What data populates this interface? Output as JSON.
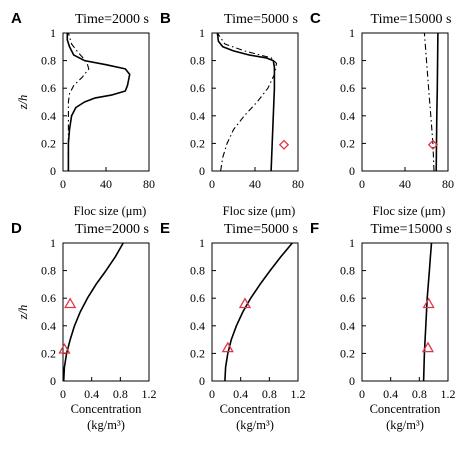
{
  "chart_data": [
    {
      "panel": "A",
      "title": "Time=2000 s",
      "type": "line",
      "xlabel": "Floc size (μm)",
      "ylabel": "z/h",
      "xlim": [
        0,
        80
      ],
      "ylim": [
        0,
        1
      ],
      "xticks": [
        "0",
        "40",
        "80"
      ],
      "yticks": [
        "0",
        "0.2",
        "0.4",
        "0.6",
        "0.8",
        "1"
      ],
      "series": [
        {
          "style": "solid",
          "x": [
            5,
            5,
            6,
            8,
            12,
            20,
            30,
            45,
            58,
            60,
            62,
            58,
            40,
            20,
            10,
            6,
            4,
            4
          ],
          "y": [
            0.0,
            0.2,
            0.3,
            0.4,
            0.46,
            0.5,
            0.53,
            0.55,
            0.58,
            0.62,
            0.7,
            0.74,
            0.77,
            0.8,
            0.84,
            0.9,
            0.95,
            1.0
          ]
        },
        {
          "style": "dashdot",
          "x": [
            5,
            5,
            5,
            5,
            6,
            10,
            18,
            24,
            22,
            14,
            8,
            5
          ],
          "y": [
            0.0,
            0.2,
            0.4,
            0.5,
            0.56,
            0.62,
            0.68,
            0.74,
            0.79,
            0.86,
            0.92,
            1.0
          ]
        }
      ],
      "markers": []
    },
    {
      "panel": "B",
      "title": "Time=5000 s",
      "type": "line",
      "xlabel": "Floc size (μm)",
      "ylabel": "",
      "xlim": [
        0,
        80
      ],
      "ylim": [
        0,
        1
      ],
      "xticks": [
        "0",
        "40",
        "80"
      ],
      "yticks": [
        "0",
        "0.2",
        "0.4",
        "0.6",
        "0.8",
        "1"
      ],
      "series": [
        {
          "style": "solid",
          "x": [
            55,
            56,
            57,
            58,
            58,
            57,
            50,
            35,
            20,
            10,
            6,
            5
          ],
          "y": [
            0.0,
            0.2,
            0.4,
            0.6,
            0.75,
            0.8,
            0.82,
            0.84,
            0.87,
            0.9,
            0.94,
            1.0
          ]
        },
        {
          "style": "dashdot",
          "x": [
            8,
            10,
            14,
            20,
            30,
            42,
            52,
            58,
            60,
            55,
            30,
            12,
            5
          ],
          "y": [
            0.0,
            0.1,
            0.2,
            0.3,
            0.4,
            0.5,
            0.6,
            0.7,
            0.78,
            0.82,
            0.87,
            0.92,
            1.0
          ]
        }
      ],
      "markers": [
        {
          "shape": "diamond",
          "x": 67,
          "y": 0.19
        }
      ]
    },
    {
      "panel": "C",
      "title": "Time=15000 s",
      "type": "line",
      "xlabel": "Floc size (μm)",
      "ylabel": "",
      "xlim": [
        0,
        80
      ],
      "ylim": [
        0,
        1
      ],
      "xticks": [
        "0",
        "40",
        "80"
      ],
      "yticks": [
        "0",
        "0.2",
        "0.4",
        "0.6",
        "0.8",
        "1"
      ],
      "series": [
        {
          "style": "solid",
          "x": [
            69,
            69.3,
            69.6,
            70,
            70.3,
            70.6
          ],
          "y": [
            0.0,
            0.2,
            0.4,
            0.6,
            0.8,
            1.0
          ]
        },
        {
          "style": "dashdot",
          "x": [
            67,
            66,
            64,
            62,
            60,
            58
          ],
          "y": [
            0.0,
            0.2,
            0.4,
            0.6,
            0.8,
            1.0
          ]
        }
      ],
      "markers": [
        {
          "shape": "diamond",
          "x": 66,
          "y": 0.19
        }
      ]
    },
    {
      "panel": "D",
      "title": "Time=2000 s",
      "type": "line",
      "xlabel": "Concentration",
      "xlabel2": "(kg/m³)",
      "ylabel": "z/h",
      "xlim": [
        0,
        1.2
      ],
      "ylim": [
        0,
        1
      ],
      "xticks": [
        "0",
        "0.4",
        "0.8",
        "1.2"
      ],
      "yticks": [
        "0",
        "0.2",
        "0.4",
        "0.6",
        "0.8",
        "1"
      ],
      "series": [
        {
          "style": "solid",
          "x": [
            0.01,
            0.02,
            0.05,
            0.1,
            0.16,
            0.24,
            0.34,
            0.46,
            0.6,
            0.73,
            0.84
          ],
          "y": [
            0.0,
            0.1,
            0.2,
            0.3,
            0.4,
            0.5,
            0.6,
            0.7,
            0.8,
            0.9,
            1.0
          ]
        }
      ],
      "markers": [
        {
          "shape": "triangle",
          "x": 0.1,
          "y": 0.56
        },
        {
          "shape": "triangle",
          "x": 0.02,
          "y": 0.23
        }
      ]
    },
    {
      "panel": "E",
      "title": "Time=5000 s",
      "type": "line",
      "xlabel": "Concentration",
      "xlabel2": "(kg/m³)",
      "ylabel": "",
      "xlim": [
        0,
        1.2
      ],
      "ylim": [
        0,
        1
      ],
      "xticks": [
        "0",
        "0.4",
        "0.8",
        "1.2"
      ],
      "yticks": [
        "0",
        "0.2",
        "0.4",
        "0.6",
        "0.8",
        "1"
      ],
      "series": [
        {
          "style": "solid",
          "x": [
            0.18,
            0.19,
            0.22,
            0.27,
            0.34,
            0.43,
            0.54,
            0.67,
            0.81,
            0.96,
            1.12
          ],
          "y": [
            0.0,
            0.1,
            0.2,
            0.3,
            0.4,
            0.5,
            0.6,
            0.7,
            0.8,
            0.9,
            1.0
          ]
        }
      ],
      "markers": [
        {
          "shape": "triangle",
          "x": 0.46,
          "y": 0.56
        },
        {
          "shape": "triangle",
          "x": 0.22,
          "y": 0.24
        }
      ]
    },
    {
      "panel": "F",
      "title": "Time=15000 s",
      "type": "line",
      "xlabel": "Concentration",
      "xlabel2": "(kg/m³)",
      "ylabel": "",
      "xlim": [
        0,
        1.2
      ],
      "ylim": [
        0,
        1
      ],
      "xticks": [
        "0",
        "0.4",
        "0.8",
        "1.2"
      ],
      "yticks": [
        "0",
        "0.2",
        "0.4",
        "0.6",
        "0.8",
        "1"
      ],
      "series": [
        {
          "style": "solid",
          "x": [
            0.86,
            0.865,
            0.87,
            0.88,
            0.89,
            0.9,
            0.91,
            0.925,
            0.94,
            0.955,
            0.97
          ],
          "y": [
            0.0,
            0.1,
            0.2,
            0.3,
            0.4,
            0.5,
            0.6,
            0.7,
            0.8,
            0.9,
            1.0
          ]
        }
      ],
      "markers": [
        {
          "shape": "triangle",
          "x": 0.93,
          "y": 0.56
        },
        {
          "shape": "triangle",
          "x": 0.92,
          "y": 0.24
        }
      ]
    }
  ],
  "colors": {
    "line": "#000000",
    "marker": "#e0364a"
  }
}
